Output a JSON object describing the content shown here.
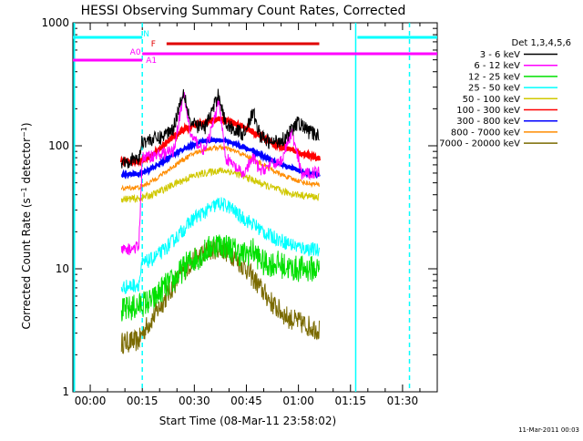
{
  "chart_data": {
    "type": "line",
    "title": "HESSI Observing Summary Count Rates, Corrected",
    "xlabel": "Start Time (08-Mar-11 23:58:02)",
    "ylabel": "Corrected Count Rate (s⁻¹ detector⁻¹)",
    "ylabel_parts": {
      "main": "Corrected Count Rate (s",
      "exp1": "−1",
      "mid": " detector",
      "exp2": "−1",
      "close": ")"
    },
    "yscale": "log",
    "ylim": [
      1,
      1000
    ],
    "xlim": [
      -5,
      100
    ],
    "x_ticks": [
      {
        "v": 0,
        "label": "00:00"
      },
      {
        "v": 15,
        "label": "00:15"
      },
      {
        "v": 30,
        "label": "00:30"
      },
      {
        "v": 45,
        "label": "00:45"
      },
      {
        "v": 60,
        "label": "01:00"
      },
      {
        "v": 75,
        "label": "01:15"
      },
      {
        "v": 90,
        "label": "01:30"
      }
    ],
    "y_ticks": [
      {
        "v": 1,
        "label": "1"
      },
      {
        "v": 10,
        "label": "10"
      },
      {
        "v": 100,
        "label": "100"
      },
      {
        "v": 1000,
        "label": "1000"
      }
    ],
    "legend": {
      "title": "Det 1,3,4,5,6",
      "placement": "right",
      "entries": [
        {
          "label": "3 - 6 keV",
          "color": "#000000"
        },
        {
          "label": "6 - 12 keV",
          "color": "#ff00ff"
        },
        {
          "label": "12 - 25 keV",
          "color": "#00e000"
        },
        {
          "label": "25 - 50 keV",
          "color": "#00ffff"
        },
        {
          "label": "50 - 100 keV",
          "color": "#d0c800"
        },
        {
          "label": "100 - 300 keV",
          "color": "#ff0000"
        },
        {
          "label": "300 - 800 keV",
          "color": "#0000ff"
        },
        {
          "label": "800 - 7000 keV",
          "color": "#ff8c00"
        },
        {
          "label": "7000 - 20000 keV",
          "color": "#7a6a00"
        }
      ]
    },
    "series": [
      {
        "name": "3 - 6 keV",
        "color": "#000000",
        "points": [
          [
            9,
            75
          ],
          [
            14,
            78
          ],
          [
            15,
            110
          ],
          [
            20,
            115
          ],
          [
            24,
            140
          ],
          [
            26,
            230
          ],
          [
            27,
            280
          ],
          [
            29,
            150
          ],
          [
            33,
            140
          ],
          [
            36,
            220
          ],
          [
            37,
            270
          ],
          [
            39,
            150
          ],
          [
            44,
            125
          ],
          [
            47,
            185
          ],
          [
            49,
            120
          ],
          [
            52,
            105
          ],
          [
            56,
            115
          ],
          [
            60,
            155
          ],
          [
            63,
            130
          ],
          [
            66,
            120
          ]
        ]
      },
      {
        "name": "6 - 12 keV",
        "color": "#ff00ff",
        "points": [
          [
            9,
            14
          ],
          [
            14,
            15
          ],
          [
            15,
            80
          ],
          [
            20,
            85
          ],
          [
            24,
            90
          ],
          [
            26,
            190
          ],
          [
            27,
            260
          ],
          [
            29,
            120
          ],
          [
            33,
            90
          ],
          [
            36,
            170
          ],
          [
            37,
            250
          ],
          [
            39,
            80
          ],
          [
            44,
            58
          ],
          [
            47,
            80
          ],
          [
            49,
            62
          ],
          [
            52,
            70
          ],
          [
            55,
            75
          ],
          [
            58,
            130
          ],
          [
            61,
            58
          ],
          [
            66,
            62
          ]
        ]
      },
      {
        "name": "12 - 25 keV",
        "color": "#00e000",
        "points": [
          [
            9,
            4.5
          ],
          [
            14,
            5
          ],
          [
            15,
            5.2
          ],
          [
            18,
            5.5
          ],
          [
            21,
            7
          ],
          [
            24,
            8
          ],
          [
            28,
            11
          ],
          [
            32,
            13
          ],
          [
            36,
            16
          ],
          [
            40,
            15
          ],
          [
            44,
            13
          ],
          [
            47,
            14
          ],
          [
            50,
            11
          ],
          [
            54,
            11
          ],
          [
            58,
            10
          ],
          [
            62,
            10
          ],
          [
            66,
            10
          ]
        ]
      },
      {
        "name": "25 - 50 keV",
        "color": "#00ffff",
        "points": [
          [
            9,
            7
          ],
          [
            14,
            7.5
          ],
          [
            15,
            11
          ],
          [
            18,
            12
          ],
          [
            21,
            14
          ],
          [
            24,
            17
          ],
          [
            27,
            21
          ],
          [
            30,
            26
          ],
          [
            34,
            30
          ],
          [
            37,
            34
          ],
          [
            40,
            32
          ],
          [
            43,
            27
          ],
          [
            47,
            23
          ],
          [
            51,
            19
          ],
          [
            55,
            17
          ],
          [
            60,
            15
          ],
          [
            66,
            14
          ]
        ]
      },
      {
        "name": "50 - 100 keV",
        "color": "#d0c800",
        "points": [
          [
            9,
            37
          ],
          [
            14,
            37
          ],
          [
            15,
            38
          ],
          [
            18,
            40
          ],
          [
            21,
            44
          ],
          [
            25,
            50
          ],
          [
            29,
            56
          ],
          [
            33,
            60
          ],
          [
            37,
            63
          ],
          [
            40,
            62
          ],
          [
            44,
            57
          ],
          [
            48,
            51
          ],
          [
            52,
            46
          ],
          [
            56,
            42
          ],
          [
            60,
            40
          ],
          [
            66,
            38
          ]
        ]
      },
      {
        "name": "100 - 300 keV",
        "color": "#ff0000",
        "points": [
          [
            9,
            75
          ],
          [
            14,
            76
          ],
          [
            15,
            77
          ],
          [
            18,
            85
          ],
          [
            21,
            100
          ],
          [
            24,
            118
          ],
          [
            27,
            135
          ],
          [
            31,
            150
          ],
          [
            35,
            160
          ],
          [
            38,
            165
          ],
          [
            42,
            150
          ],
          [
            46,
            135
          ],
          [
            50,
            115
          ],
          [
            54,
            100
          ],
          [
            58,
            92
          ],
          [
            62,
            85
          ],
          [
            66,
            78
          ]
        ]
      },
      {
        "name": "300 - 800 keV",
        "color": "#0000ff",
        "points": [
          [
            9,
            58
          ],
          [
            14,
            59
          ],
          [
            15,
            60
          ],
          [
            18,
            66
          ],
          [
            22,
            78
          ],
          [
            26,
            92
          ],
          [
            30,
            103
          ],
          [
            34,
            110
          ],
          [
            38,
            112
          ],
          [
            42,
            103
          ],
          [
            46,
            93
          ],
          [
            50,
            82
          ],
          [
            54,
            72
          ],
          [
            58,
            66
          ],
          [
            62,
            60
          ],
          [
            66,
            58
          ]
        ]
      },
      {
        "name": "800 - 7000 keV",
        "color": "#ff8c00",
        "points": [
          [
            9,
            45
          ],
          [
            14,
            46
          ],
          [
            15,
            47
          ],
          [
            18,
            52
          ],
          [
            22,
            62
          ],
          [
            26,
            75
          ],
          [
            30,
            87
          ],
          [
            34,
            95
          ],
          [
            38,
            97
          ],
          [
            42,
            90
          ],
          [
            46,
            80
          ],
          [
            50,
            70
          ],
          [
            54,
            60
          ],
          [
            58,
            54
          ],
          [
            62,
            50
          ],
          [
            66,
            48
          ]
        ]
      },
      {
        "name": "7000 - 20000 keV",
        "color": "#7a6a00",
        "points": [
          [
            9,
            2.5
          ],
          [
            14,
            2.6
          ],
          [
            15,
            3
          ],
          [
            18,
            4
          ],
          [
            22,
            6
          ],
          [
            26,
            9
          ],
          [
            30,
            12
          ],
          [
            34,
            14
          ],
          [
            37,
            15
          ],
          [
            41,
            13
          ],
          [
            45,
            10
          ],
          [
            49,
            7
          ],
          [
            53,
            5
          ],
          [
            57,
            4
          ],
          [
            62,
            3.5
          ],
          [
            66,
            3.2
          ]
        ]
      }
    ],
    "annotations": {
      "lines": [
        {
          "name": "N",
          "color": "#00ffff",
          "segments": [
            [
              -5,
              15
            ],
            [
              77,
              100
            ]
          ]
        },
        {
          "name": "F",
          "color": "#e00000",
          "segments": [
            [
              22,
              66
            ]
          ]
        },
        {
          "name": "A0",
          "color": "#ff00ff",
          "segments": [
            [
              -5,
              15
            ]
          ]
        },
        {
          "name": "A1",
          "color": "#ff00ff",
          "segments": [
            [
              15,
              100
            ]
          ]
        }
      ],
      "vlines": [
        {
          "x": 15,
          "color": "#00ffff",
          "dashed": true
        },
        {
          "x": 76.5,
          "color": "#00ffff",
          "dashed": false
        },
        {
          "x": 92,
          "color": "#00ffff",
          "dashed": true
        }
      ]
    },
    "grid": false
  },
  "footer_date": "11-Mar-2011 00:03"
}
